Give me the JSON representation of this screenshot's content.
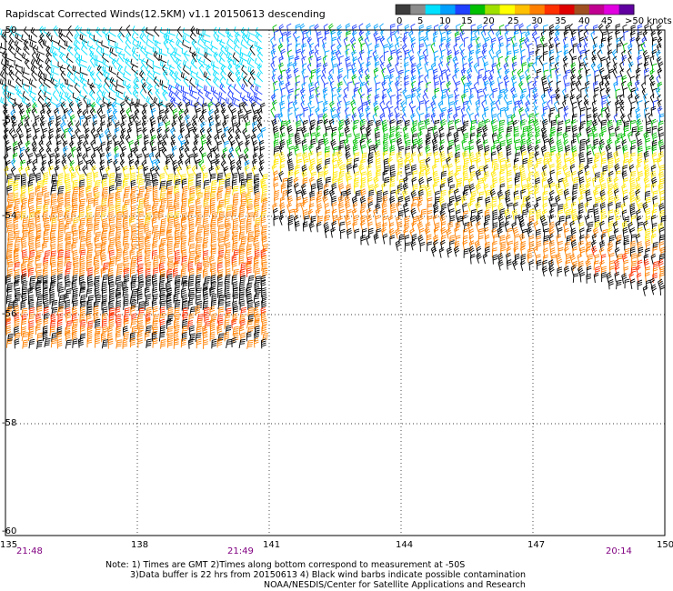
{
  "title": "Rapidscat Corrected Winds(12.5KM) v1.1 20150613 descending",
  "legend": {
    "labels": [
      "0",
      "5",
      "10",
      "15",
      "20",
      "25",
      "30",
      "35",
      "40",
      "45",
      ">50 knots"
    ],
    "colors": [
      "#3c3c3c",
      "#8c8c8c",
      "#00e0ff",
      "#00a0ff",
      "#2040ff",
      "#00c000",
      "#a0e000",
      "#ffff00",
      "#ffc000",
      "#ff8000",
      "#ff3000",
      "#e00000",
      "#a05020",
      "#c00090",
      "#e000e0",
      "#6000a0"
    ]
  },
  "map": {
    "lat_labels": [
      "-50",
      "-52",
      "-54",
      "-56",
      "-58",
      "-60"
    ],
    "lon_labels": [
      "135",
      "138",
      "141",
      "144",
      "147",
      "150"
    ],
    "time_labels": [
      "21:48",
      "21:49",
      "20:14"
    ]
  },
  "notes": [
    "Note: 1) Times are GMT 2)Times along bottom correspond to measurement at -50S",
    "3)Data buffer is 22 hrs from 20150613 4) Black wind barbs indicate possible contamination",
    "NOAA/NESDIS/Center for Satellite Applications and Research"
  ]
}
